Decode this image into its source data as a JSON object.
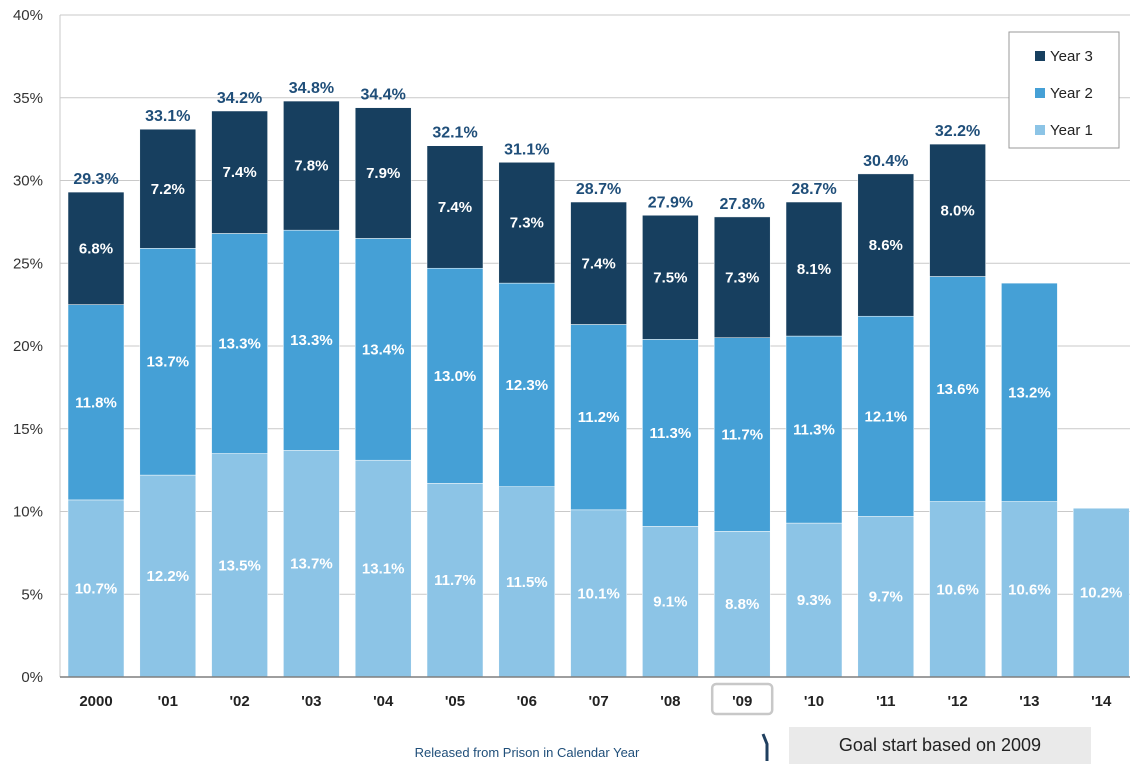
{
  "chart_data": {
    "type": "bar",
    "stacked": true,
    "categories": [
      "2000",
      "'01",
      "'02",
      "'03",
      "'04",
      "'05",
      "'06",
      "'07",
      "'08",
      "'09",
      "'10",
      "'11",
      "'12",
      "'13",
      "'14"
    ],
    "series": [
      {
        "name": "Year 1",
        "color": "#8cc4e6",
        "values": [
          10.7,
          12.2,
          13.5,
          13.7,
          13.1,
          11.7,
          11.5,
          10.1,
          9.1,
          8.8,
          9.3,
          9.7,
          10.6,
          10.6,
          10.2
        ],
        "labels": [
          "10.7%",
          "12.2%",
          "13.5%",
          "13.7%",
          "13.1%",
          "11.7%",
          "11.5%",
          "10.1%",
          "9.1%",
          "8.8%",
          "9.3%",
          "9.7%",
          "10.6%",
          "10.6%",
          "10.2%"
        ]
      },
      {
        "name": "Year 2",
        "color": "#45a0d6",
        "values": [
          11.8,
          13.7,
          13.3,
          13.3,
          13.4,
          13.0,
          12.3,
          11.2,
          11.3,
          11.7,
          11.3,
          12.1,
          13.6,
          13.2,
          null
        ],
        "labels": [
          "11.8%",
          "13.7%",
          "13.3%",
          "13.3%",
          "13.4%",
          "13.0%",
          "12.3%",
          "11.2%",
          "11.3%",
          "11.7%",
          "11.3%",
          "12.1%",
          "13.6%",
          "13.2%",
          ""
        ]
      },
      {
        "name": "Year 3",
        "color": "#173f5f",
        "values": [
          6.8,
          7.2,
          7.4,
          7.8,
          7.9,
          7.4,
          7.3,
          7.4,
          7.5,
          7.3,
          8.1,
          8.6,
          8.0,
          null,
          null
        ],
        "labels": [
          "6.8%",
          "7.2%",
          "7.4%",
          "7.8%",
          "7.9%",
          "7.4%",
          "7.3%",
          "7.4%",
          "7.5%",
          "7.3%",
          "8.1%",
          "8.6%",
          "8.0%",
          "",
          ""
        ]
      }
    ],
    "totals": [
      29.3,
      33.1,
      34.2,
      34.8,
      34.4,
      32.1,
      31.1,
      28.7,
      27.9,
      27.8,
      28.7,
      30.4,
      32.2,
      null,
      null
    ],
    "total_labels": [
      "29.3%",
      "33.1%",
      "34.2%",
      "34.8%",
      "34.4%",
      "32.1%",
      "31.1%",
      "28.7%",
      "27.9%",
      "27.8%",
      "28.7%",
      "30.4%",
      "32.2%",
      "",
      ""
    ],
    "ylim": [
      0,
      40
    ],
    "yticks": [
      0,
      5,
      10,
      15,
      20,
      25,
      30,
      35,
      40
    ],
    "ytick_labels": [
      "0%",
      "5%",
      "10%",
      "15%",
      "20%",
      "25%",
      "30%",
      "35%",
      "40%"
    ],
    "grid": true,
    "legend_position": "top-right",
    "xlabel": "Released from Prison in Calendar Year",
    "ylabel": "",
    "title": "",
    "highlighted_category": "'09",
    "annotation": "Goal start based on 2009"
  }
}
